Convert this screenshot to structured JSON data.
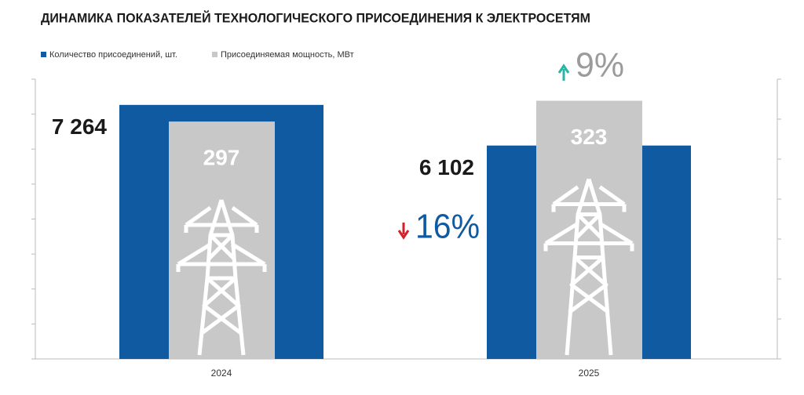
{
  "chart_data": {
    "type": "bar",
    "title": "ДИНАМИКА ПОКАЗАТЕЛЕЙ ТЕХНОЛОГИЧЕСКОГО ПРИСОЕДИНЕНИЯ К ЭЛЕКТРОСЕТЯМ",
    "categories": [
      "2024",
      "2025"
    ],
    "series": [
      {
        "name": "Количество присоединений, шт.",
        "color": "#0f5aa0",
        "values": [
          7264,
          6102
        ],
        "value_labels": [
          "7 264",
          "6 102"
        ]
      },
      {
        "name": "Присоединяемая мощность, МВт",
        "color": "#c8c8c8",
        "values": [
          297,
          323
        ],
        "axis": "y2"
      }
    ],
    "ylim": [
      0,
      8000
    ],
    "yticks": [
      0,
      1000,
      2000,
      3000,
      4000,
      5000,
      6000,
      7000,
      8000
    ],
    "y2lim": [
      0,
      350
    ],
    "y2ticks": [
      0,
      50,
      100,
      150,
      200,
      250,
      300,
      350
    ],
    "annotations": [
      {
        "text": "9%"
      },
      {
        "text": "16%"
      }
    ]
  }
}
